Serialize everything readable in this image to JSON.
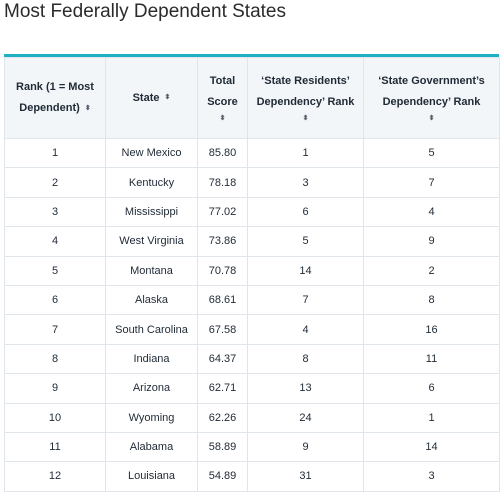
{
  "page": {
    "title": "Most Federally Dependent States"
  },
  "sort_glyph": "⬍",
  "columns": [
    {
      "label": "Rank (1 = Most Dependent)"
    },
    {
      "label": "State"
    },
    {
      "label_line1": "Total",
      "label_line2": "Score"
    },
    {
      "label_line1": "‘State Residents’",
      "label_line2": "Dependency’ Rank"
    },
    {
      "label_line1": "‘State Government’s",
      "label_line2": "Dependency’ Rank"
    }
  ],
  "rows": [
    {
      "rank": "1",
      "state": "New Mexico",
      "score": "85.80",
      "residents_rank": "1",
      "government_rank": "5"
    },
    {
      "rank": "2",
      "state": "Kentucky",
      "score": "78.18",
      "residents_rank": "3",
      "government_rank": "7"
    },
    {
      "rank": "3",
      "state": "Mississippi",
      "score": "77.02",
      "residents_rank": "6",
      "government_rank": "4"
    },
    {
      "rank": "4",
      "state": "West Virginia",
      "score": "73.86",
      "residents_rank": "5",
      "government_rank": "9"
    },
    {
      "rank": "5",
      "state": "Montana",
      "score": "70.78",
      "residents_rank": "14",
      "government_rank": "2"
    },
    {
      "rank": "6",
      "state": "Alaska",
      "score": "68.61",
      "residents_rank": "7",
      "government_rank": "8"
    },
    {
      "rank": "7",
      "state": "South Carolina",
      "score": "67.58",
      "residents_rank": "4",
      "government_rank": "16"
    },
    {
      "rank": "8",
      "state": "Indiana",
      "score": "64.37",
      "residents_rank": "8",
      "government_rank": "11"
    },
    {
      "rank": "9",
      "state": "Arizona",
      "score": "62.71",
      "residents_rank": "13",
      "government_rank": "6"
    },
    {
      "rank": "10",
      "state": "Wyoming",
      "score": "62.26",
      "residents_rank": "24",
      "government_rank": "1"
    },
    {
      "rank": "11",
      "state": "Alabama",
      "score": "58.89",
      "residents_rank": "9",
      "government_rank": "14"
    },
    {
      "rank": "12",
      "state": "Louisiana",
      "score": "54.89",
      "residents_rank": "31",
      "government_rank": "3"
    }
  ]
}
